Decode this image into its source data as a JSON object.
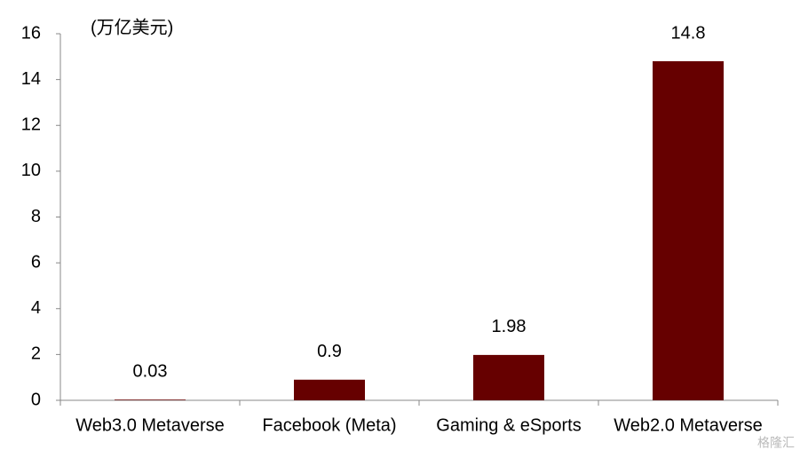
{
  "chart_data": {
    "type": "bar",
    "unit_label": "(万亿美元)",
    "categories": [
      "Web3.0 Metaverse",
      "Facebook (Meta)",
      "Gaming & eSports",
      "Web2.0 Metaverse"
    ],
    "values": [
      0.03,
      0.9,
      1.98,
      14.8
    ],
    "color": "#660000",
    "ylim": [
      0,
      16
    ],
    "yticks": [
      0,
      2,
      4,
      6,
      8,
      10,
      12,
      14,
      16
    ],
    "grid": false,
    "watermark": "格隆汇"
  }
}
